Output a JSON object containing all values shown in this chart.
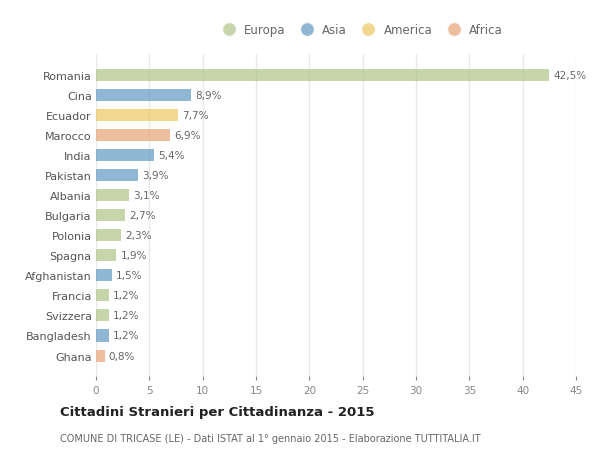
{
  "countries": [
    "Romania",
    "Cina",
    "Ecuador",
    "Marocco",
    "India",
    "Pakistan",
    "Albania",
    "Bulgaria",
    "Polonia",
    "Spagna",
    "Afghanistan",
    "Francia",
    "Svizzera",
    "Bangladesh",
    "Ghana"
  ],
  "values": [
    42.5,
    8.9,
    7.7,
    6.9,
    5.4,
    3.9,
    3.1,
    2.7,
    2.3,
    1.9,
    1.5,
    1.2,
    1.2,
    1.2,
    0.8
  ],
  "labels": [
    "42,5%",
    "8,9%",
    "7,7%",
    "6,9%",
    "5,4%",
    "3,9%",
    "3,1%",
    "2,7%",
    "2,3%",
    "1,9%",
    "1,5%",
    "1,2%",
    "1,2%",
    "1,2%",
    "0,8%"
  ],
  "colors": [
    "#b5c98e",
    "#6a9ec5",
    "#f0c96a",
    "#e8a87c",
    "#6a9ec5",
    "#6a9ec5",
    "#b5c98e",
    "#b5c98e",
    "#b5c98e",
    "#b5c98e",
    "#6a9ec5",
    "#b5c98e",
    "#b5c98e",
    "#6a9ec5",
    "#e8a87c"
  ],
  "legend_labels": [
    "Europa",
    "Asia",
    "America",
    "Africa"
  ],
  "legend_colors": [
    "#b5c98e",
    "#6a9ec5",
    "#f0c96a",
    "#e8a87c"
  ],
  "title": "Cittadini Stranieri per Cittadinanza - 2015",
  "subtitle": "COMUNE DI TRICASE (LE) - Dati ISTAT al 1° gennaio 2015 - Elaborazione TUTTITALIA.IT",
  "xlim": [
    0,
    45
  ],
  "xticks": [
    0,
    5,
    10,
    15,
    20,
    25,
    30,
    35,
    40,
    45
  ],
  "background_color": "#ffffff",
  "grid_color": "#e8e8e8",
  "bar_alpha": 0.75
}
